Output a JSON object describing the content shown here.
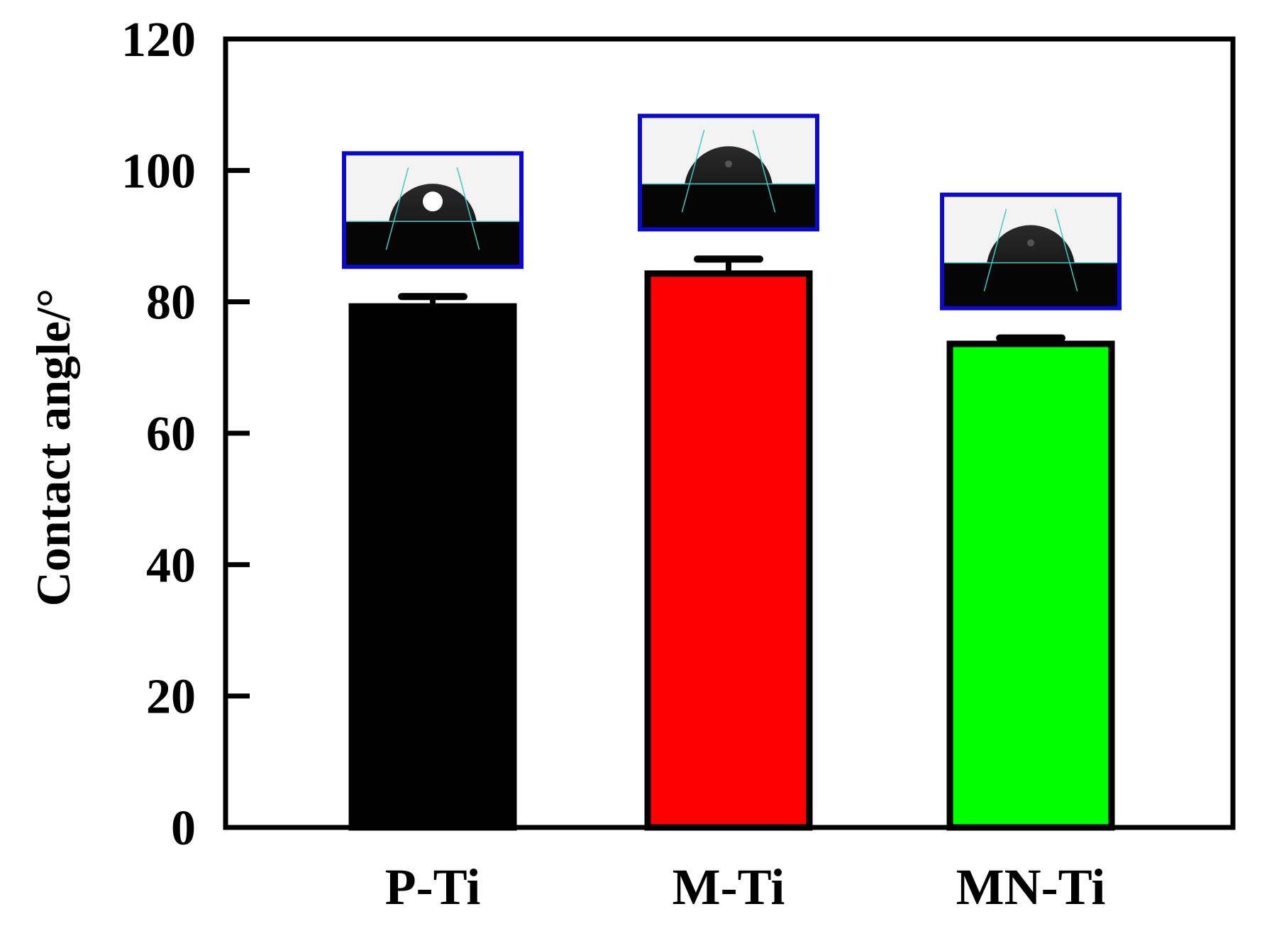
{
  "chart_data": {
    "type": "bar",
    "title": "",
    "xlabel": "",
    "ylabel": "Contact angle/°",
    "ylim": [
      0,
      120
    ],
    "yticks": [
      0,
      20,
      40,
      60,
      80,
      100,
      120
    ],
    "ytick_labels": [
      "0",
      "20",
      "40",
      "60",
      "80",
      "100",
      "120"
    ],
    "categories": [
      "P-Ti",
      "M-Ti",
      "MN-Ti"
    ],
    "values": [
      79.3,
      84.3,
      73.6
    ],
    "errors": [
      1.5,
      2.2,
      0.9
    ],
    "bar_colors": [
      "#000000",
      "#ff0000",
      "#00ff00"
    ],
    "grid": false,
    "legend": "none",
    "inset_images": [
      {
        "category": "P-Ti",
        "depicts": "water-droplet-photo",
        "border_color": "#0a0ac8"
      },
      {
        "category": "M-Ti",
        "depicts": "water-droplet-photo",
        "border_color": "#0a0ac8"
      },
      {
        "category": "MN-Ti",
        "depicts": "water-droplet-photo",
        "border_color": "#0a0ac8"
      }
    ]
  }
}
